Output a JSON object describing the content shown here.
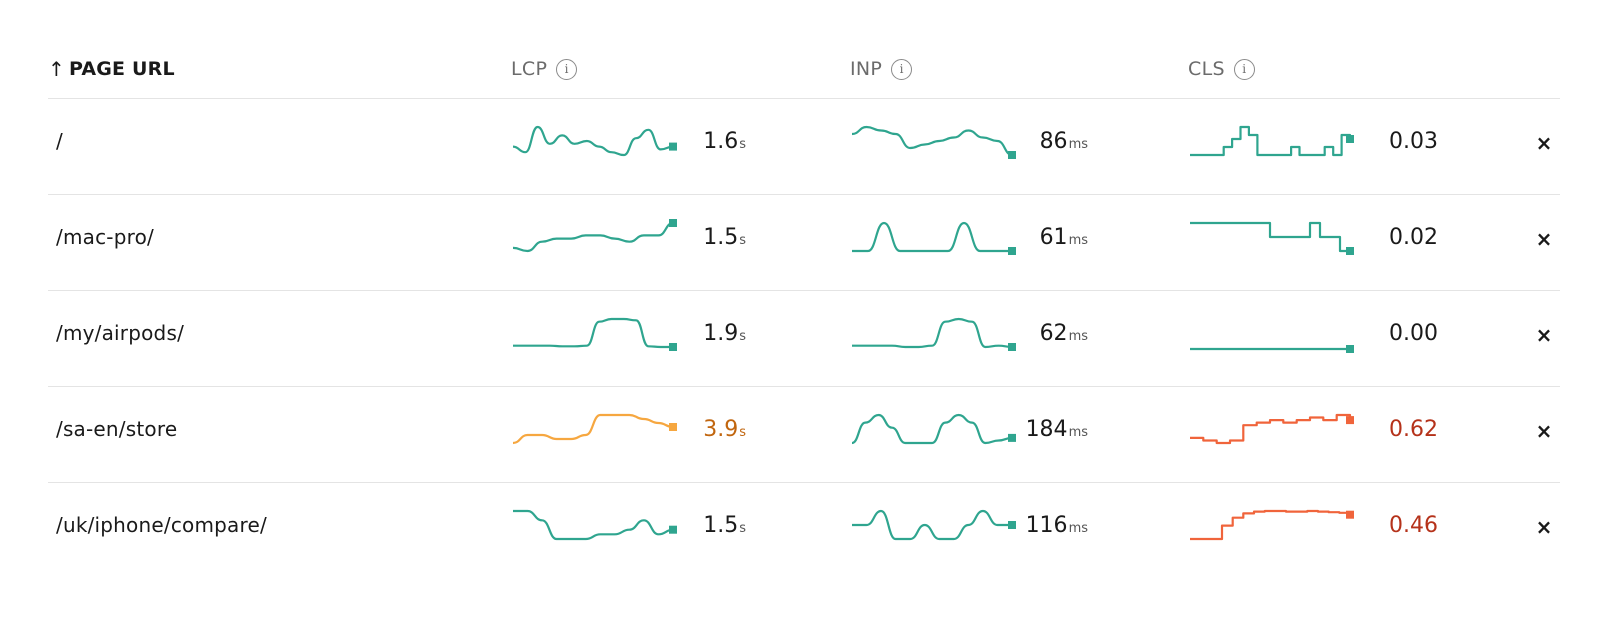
{
  "colors": {
    "good": "#2fa58f",
    "needs_improvement": "#f6a740",
    "poor": "#f0643b"
  },
  "header": {
    "sort_arrow": "↑",
    "url_label": "PAGE URL",
    "metrics": [
      {
        "label": "LCP",
        "info": "i"
      },
      {
        "label": "INP",
        "info": "i"
      },
      {
        "label": "CLS",
        "info": "i"
      }
    ]
  },
  "rows": [
    {
      "url": "/",
      "lcp": {
        "value": "1.6",
        "unit": "s",
        "status": "good",
        "trend": [
          3.2,
          3.0,
          3.9,
          3.3,
          3.6,
          3.3,
          3.4,
          3.2,
          3.0,
          2.9,
          3.5,
          3.8,
          3.1,
          3.2
        ]
      },
      "inp": {
        "value": "86",
        "unit": "ms",
        "status": "good",
        "trend": [
          82,
          84,
          83,
          82,
          78,
          79,
          80,
          81,
          83,
          81,
          80,
          76
        ]
      },
      "cls": {
        "value": "0.03",
        "unit": "",
        "status": "good",
        "trend": [
          0.0,
          0.0,
          0.0,
          0.0,
          0.02,
          0.04,
          0.07,
          0.05,
          0.0,
          0.0,
          0.0,
          0.0,
          0.02,
          0.0,
          0.0,
          0.0,
          0.02,
          0.0,
          0.05,
          0.04
        ]
      }
    },
    {
      "url": "/mac-pro/",
      "lcp": {
        "value": "1.5",
        "unit": "s",
        "status": "good",
        "trend": [
          3.1,
          3.0,
          3.3,
          3.4,
          3.4,
          3.5,
          3.5,
          3.4,
          3.3,
          3.5,
          3.5,
          3.9
        ]
      },
      "inp": {
        "value": "61",
        "unit": "ms",
        "status": "good",
        "trend": [
          61,
          61,
          62,
          61,
          61,
          61,
          61,
          62,
          61,
          61,
          61
        ]
      },
      "cls": {
        "value": "0.02",
        "unit": "",
        "status": "good",
        "trend": [
          0.04,
          0.04,
          0.04,
          0.04,
          0.04,
          0.04,
          0.04,
          0.04,
          0.02,
          0.02,
          0.02,
          0.02,
          0.04,
          0.02,
          0.02,
          0.0,
          0.0
        ]
      }
    },
    {
      "url": "/my/airpods/",
      "lcp": {
        "value": "1.9",
        "unit": "s",
        "status": "good",
        "trend": [
          1.8,
          1.8,
          1.8,
          1.8,
          1.75,
          1.75,
          1.8,
          3.6,
          3.8,
          3.8,
          3.7,
          1.75,
          1.7,
          1.7
        ]
      },
      "inp": {
        "value": "62",
        "unit": "ms",
        "status": "good",
        "trend": [
          60,
          60,
          60,
          60,
          59,
          59,
          60,
          78,
          80,
          78,
          59,
          60,
          59
        ]
      },
      "cls": {
        "value": "0.00",
        "unit": "",
        "status": "good",
        "trend": [
          0.0,
          0.0,
          0.0,
          0.0,
          0.0,
          0.0,
          0.0,
          0.0
        ]
      }
    },
    {
      "url": "/sa-en/store",
      "lcp": {
        "value": "3.9",
        "unit": "s",
        "status": "needs_improvement",
        "trend": [
          3.2,
          3.4,
          3.4,
          3.3,
          3.3,
          3.4,
          3.9,
          3.9,
          3.9,
          3.8,
          3.7,
          3.6
        ]
      },
      "inp": {
        "value": "184",
        "unit": "ms",
        "status": "good",
        "trend": [
          150,
          190,
          205,
          180,
          150,
          150,
          150,
          190,
          205,
          190,
          150,
          155,
          160
        ]
      },
      "cls": {
        "value": "0.62",
        "unit": "",
        "status": "poor",
        "trend": [
          0.55,
          0.54,
          0.53,
          0.54,
          0.6,
          0.61,
          0.62,
          0.61,
          0.62,
          0.63,
          0.62,
          0.64,
          0.62
        ]
      }
    },
    {
      "url": "/uk/iphone/compare/",
      "lcp": {
        "value": "1.5",
        "unit": "s",
        "status": "good",
        "trend": [
          1.8,
          1.8,
          1.7,
          1.5,
          1.5,
          1.5,
          1.55,
          1.55,
          1.6,
          1.7,
          1.55,
          1.6
        ]
      },
      "inp": {
        "value": "116",
        "unit": "ms",
        "status": "good",
        "trend": [
          116,
          116,
          117,
          115,
          115,
          116,
          115,
          115,
          116,
          117,
          116,
          116
        ]
      },
      "cls": {
        "value": "0.46",
        "unit": "",
        "status": "poor",
        "trend": [
          0.0,
          0.0,
          0.0,
          0.22,
          0.35,
          0.42,
          0.45,
          0.46,
          0.46,
          0.45,
          0.45,
          0.46,
          0.45,
          0.44,
          0.43,
          0.4
        ]
      }
    }
  ]
}
